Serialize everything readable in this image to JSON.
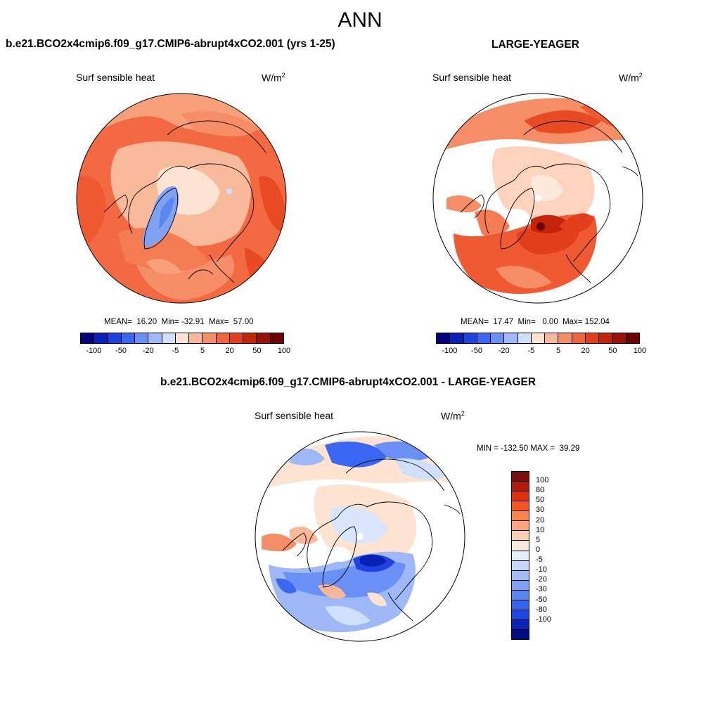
{
  "title": "ANN",
  "panels": [
    {
      "title": "b.e21.BCO2x4cmip6.f09_g17.CMIP6-abrupt4xCO2.001 (yrs 1-25)",
      "variable": "Surf sensible heat",
      "units": "W/m",
      "units_sup": "2",
      "stats": "MEAN=  16.20  Min= -32.91  Max=  57.00"
    },
    {
      "title": "LARGE-YEAGER",
      "variable": "Surf sensible heat",
      "units": "W/m",
      "units_sup": "2",
      "stats": "MEAN=  17.47  Min=   0.00  Max= 152.04"
    },
    {
      "title": "b.e21.BCO2x4cmip6.f09_g17.CMIP6-abrupt4xCO2.001 - LARGE-YEAGER",
      "variable": "Surf sensible heat",
      "units": "W/m",
      "units_sup": "2",
      "stats": "MIN = -132.50 MAX =  39.29"
    }
  ],
  "colorbar_h": {
    "colors": [
      "#00007f",
      "#0a1fb4",
      "#1e44e0",
      "#3a67f2",
      "#6a8ff5",
      "#9fb8f7",
      "#cfe0fa",
      "#fde3d0",
      "#f9b79a",
      "#f58d66",
      "#f0643e",
      "#e23f1c",
      "#c42409",
      "#961204",
      "#6b0300"
    ],
    "labels": [
      "-100",
      "-50",
      "-20",
      "-5",
      "5",
      "20",
      "50",
      "100"
    ]
  },
  "colorbar_v": {
    "colors": [
      "#7a0d0d",
      "#b01c0c",
      "#e02f0c",
      "#f7551c",
      "#f98349",
      "#fca57a",
      "#fdcfb2",
      "#fde9dc",
      "#e4eefc",
      "#c5d8f7",
      "#a2bdf5",
      "#7ca1f2",
      "#5686ef",
      "#3266f0",
      "#1a47e5",
      "#0a25b6",
      "#000c80"
    ],
    "labels": [
      "100",
      "80",
      "50",
      "30",
      "20",
      "10",
      "5",
      "0",
      "-5",
      "-10",
      "-20",
      "-30",
      "-50",
      "-80",
      "-100"
    ]
  }
}
